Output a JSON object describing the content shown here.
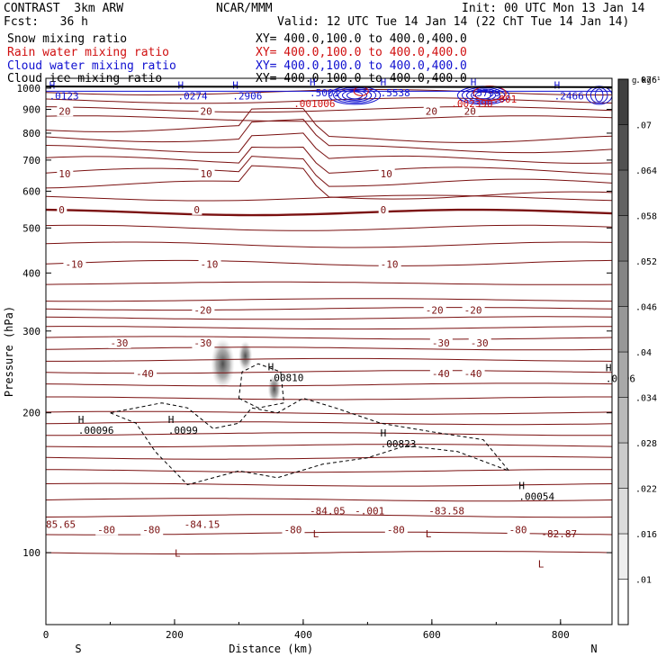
{
  "header": {
    "model": "CONTRAST  3km ARW",
    "center": "NCAR/MMM",
    "init": "Init: 00 UTC Mon 13 Jan 14",
    "fcst": "Fcst:   36 h",
    "valid": "Valid: 12 UTC Tue 14 Jan 14 (22 ChT Tue 14 Jan 14)"
  },
  "fields": [
    {
      "name": "Snow water mixing ratio",
      "label": "Snow mixing ratio",
      "xy": "XY= 400.0,100.0 to 400.0,400.0",
      "color": "#000000"
    },
    {
      "name": "Rain water mixing ratio",
      "label": "Rain water mixing ratio",
      "xy": "XY= 400.0,100.0 to 400.0,400.0",
      "color": "#d01010"
    },
    {
      "name": "Cloud water mixing ratio",
      "label": "Cloud water mixing ratio",
      "xy": "XY= 400.0,100.0 to 400.0,400.0",
      "color": "#1010d0"
    },
    {
      "name": "Cloud ice mixing ratio",
      "label": "Cloud ice mixing ratio",
      "xy": "XY= 400.0,100.0 to 400.0,400.0",
      "color": "#000000"
    }
  ],
  "chart_data": {
    "type": "cross-section contour",
    "xlabel": "Distance (km)",
    "ylabel": "Pressure (hPa)",
    "xlim": [
      0,
      880
    ],
    "ylim": [
      1050,
      70
    ],
    "x_ticks": [
      0,
      200,
      400,
      600,
      800
    ],
    "y_ticks": [
      100,
      200,
      300,
      400,
      500,
      600,
      700,
      800,
      900,
      1000
    ],
    "x_end_labels": {
      "left": "S",
      "right": "N"
    },
    "colorbar": {
      "unit": "g kg⁻¹",
      "ticks": [
        ".01",
        ".016",
        ".022",
        ".028",
        ".034",
        ".04",
        ".046",
        ".052",
        ".058",
        ".064",
        ".07",
        ".076"
      ],
      "values": [
        0.01,
        0.016,
        0.022,
        0.028,
        0.034,
        0.04,
        0.046,
        0.052,
        0.058,
        0.064,
        0.07,
        0.076,
        0.082
      ],
      "color_low": "#ffffff",
      "color_high": "#404040"
    },
    "temperature_contours": {
      "color": "#7a1010",
      "labeled_lines": [
        {
          "value": "-80",
          "p": 112,
          "label_x": [
            80,
            150,
            370,
            530,
            720
          ]
        },
        {
          "value": "-40",
          "p": 243,
          "label_x": [
            140,
            600,
            650
          ]
        },
        {
          "value": "-30",
          "p": 283,
          "label_x": [
            100,
            230,
            600,
            660
          ]
        },
        {
          "value": "-20",
          "p": 333,
          "label_x": [
            230,
            590,
            650
          ]
        },
        {
          "value": "-10",
          "p": 418,
          "label_x": [
            30,
            240,
            520
          ]
        },
        {
          "value": "0",
          "p": 548,
          "label_x": [
            20,
            230,
            520
          ]
        },
        {
          "value": "10",
          "p": 655,
          "label_x": [
            20,
            240,
            520
          ]
        },
        {
          "value": "20",
          "p": 893,
          "label_x": [
            20,
            240,
            590,
            650
          ]
        }
      ],
      "min_max_labels": [
        {
          "text": "85.65",
          "x": 0,
          "p": 113
        },
        {
          "text": "L",
          "x": 200,
          "p": 98
        },
        {
          "text": "-84.15",
          "x": 215,
          "p": 113
        },
        {
          "text": "L",
          "x": 415,
          "p": 108
        },
        {
          "text": "-84.05",
          "x": 410,
          "p": 121
        },
        {
          "text": "-.001",
          "x": 480,
          "p": 121
        },
        {
          "text": "L",
          "x": 590,
          "p": 108
        },
        {
          "text": "-83.58",
          "x": 595,
          "p": 121
        },
        {
          "text": "L",
          "x": 765,
          "p": 93
        },
        {
          "text": "-82.87",
          "x": 770,
          "p": 108
        }
      ]
    },
    "snow_contours_dashed": [
      {
        "text": "H",
        "x": 50,
        "p": 190,
        "value": ".00096"
      },
      {
        "text": "H",
        "x": 190,
        "p": 190,
        "value": ".0099"
      },
      {
        "text": "H",
        "x": 520,
        "p": 178,
        "value": ".00823"
      },
      {
        "text": "H",
        "x": 735,
        "p": 137,
        "value": ".00054"
      },
      {
        "text": "H",
        "x": 345,
        "p": 247,
        "value": ".00810"
      },
      {
        "text": "H",
        "x": 870,
        "p": 246,
        "value": ".0006"
      }
    ],
    "cloud_ice_maxima": [
      {
        "x": 275,
        "p": 255,
        "value": 0.08
      },
      {
        "x": 310,
        "p": 265,
        "value": 0.03
      },
      {
        "x": 355,
        "p": 225,
        "value": 0.025
      }
    ],
    "cloud_water_labels": [
      {
        "text": "H",
        "x": 5,
        "p": 955,
        "value": ".0123"
      },
      {
        "text": "H",
        "x": 205,
        "p": 955,
        "value": ".0274"
      },
      {
        "text": "H",
        "x": 290,
        "p": 955,
        "value": ".2906"
      },
      {
        "text": "H",
        "x": 410,
        "p": 968,
        "value": ".5001"
      },
      {
        "text": "H",
        "x": 520,
        "p": 968,
        "value": ".5538"
      },
      {
        "text": "H",
        "x": 660,
        "p": 968,
        "value": ".5799"
      },
      {
        "text": "H",
        "x": 790,
        "p": 955,
        "value": ".2466"
      }
    ],
    "rain_water_labels": [
      {
        "text": "H",
        "x": 385,
        "p": 968,
        "value": ".001006"
      },
      {
        "text": "H",
        "x": 630,
        "p": 968,
        "value": ".002390"
      },
      {
        "text": "H",
        "x": 695,
        "p": 990,
        "value": ".001"
      }
    ]
  }
}
